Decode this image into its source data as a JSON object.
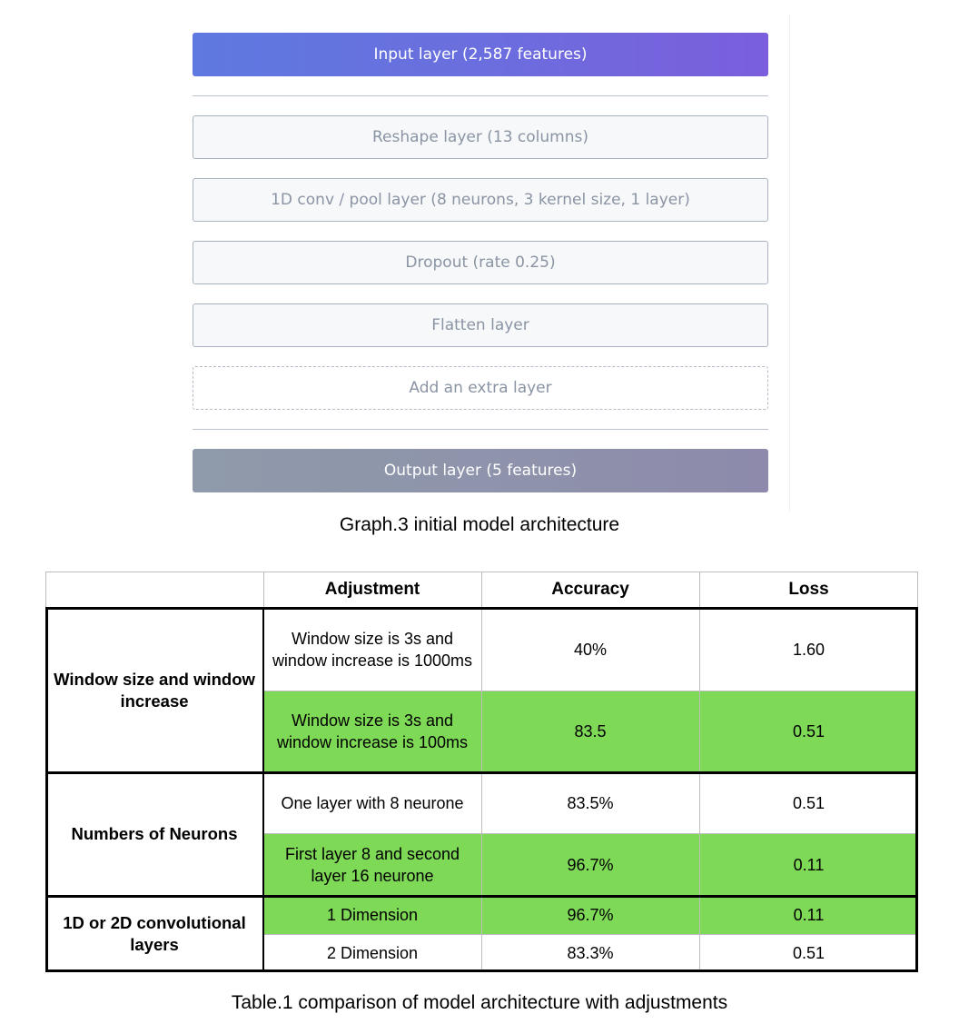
{
  "graph": {
    "layers": {
      "input": "Input layer (2,587 features)",
      "reshape": "Reshape layer (13 columns)",
      "conv": "1D conv / pool layer (8 neurons, 3 kernel size, 1 layer)",
      "dropout": "Dropout (rate 0.25)",
      "flatten": "Flatten layer",
      "add_extra": "Add an extra layer",
      "output": "Output layer (5 features)"
    },
    "caption": "Graph.3 initial model architecture"
  },
  "table": {
    "headers": {
      "group": "",
      "adjustment": "Adjustment",
      "accuracy": "Accuracy",
      "loss": "Loss"
    },
    "groups": [
      {
        "label": "Window size and window increase",
        "rows": [
          {
            "adjustment": "Window size is 3s and window increase is 1000ms",
            "accuracy": "40%",
            "loss": "1.60",
            "highlighted": false
          },
          {
            "adjustment": "Window size is 3s and window increase is 100ms",
            "accuracy": "83.5",
            "loss": "0.51",
            "highlighted": true
          }
        ]
      },
      {
        "label": "Numbers of Neurons",
        "rows": [
          {
            "adjustment": "One layer with  8 neurone",
            "accuracy": "83.5%",
            "loss": "0.51",
            "highlighted": false
          },
          {
            "adjustment": "First layer 8 and second layer 16 neurone",
            "accuracy": "96.7%",
            "loss": "0.11",
            "highlighted": true
          }
        ]
      },
      {
        "label": "1D or 2D convolutional layers",
        "rows": [
          {
            "adjustment": "1 Dimension",
            "accuracy": "96.7%",
            "loss": "0.11",
            "highlighted": true
          },
          {
            "adjustment": "2 Dimension",
            "accuracy": "83.3%",
            "loss": "0.51",
            "highlighted": false
          }
        ]
      }
    ],
    "highlight_color": "#7ed957",
    "caption": "Table.1 comparison of model architecture with adjustments"
  }
}
